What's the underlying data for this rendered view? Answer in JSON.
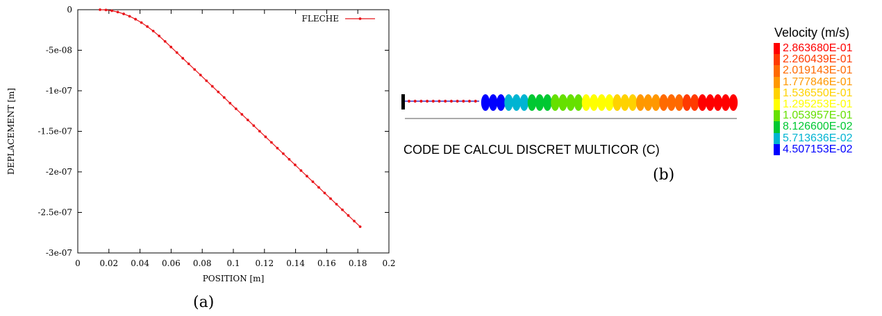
{
  "chart_data": [
    {
      "type": "line",
      "panel_label": "(a)",
      "xlabel": "POSITION [m]",
      "ylabel": "DEPLACEMENT [m]",
      "xlim": [
        0,
        0.2
      ],
      "ylim": [
        -3e-07,
        0
      ],
      "xticks": [
        "0",
        "0.02",
        "0.04",
        "0.06",
        "0.08",
        "0.1",
        "0.12",
        "0.14",
        "0.16",
        "0.18",
        "0.2"
      ],
      "yticks": [
        "0",
        "-5e-08",
        "-1e-07",
        "-1.5e-07",
        "-2e-07",
        "-2.5e-07",
        "-3e-07"
      ],
      "grid": false,
      "legend_position": "top-right",
      "series_color": "#e8151b",
      "series": [
        {
          "name": "FLECHE",
          "x": [
            0.0143,
            0.0181,
            0.0219,
            0.0257,
            0.0295,
            0.0333,
            0.0371,
            0.0409,
            0.0447,
            0.0485,
            0.0523,
            0.0561,
            0.0599,
            0.0637,
            0.0675,
            0.0713,
            0.0751,
            0.0789,
            0.0827,
            0.0865,
            0.0903,
            0.0941,
            0.0979,
            0.1017,
            0.1055,
            0.1093,
            0.1131,
            0.1169,
            0.1207,
            0.1245,
            0.1283,
            0.1321,
            0.1359,
            0.1397,
            0.1435,
            0.1473,
            0.1511,
            0.1549,
            0.1587,
            0.1625,
            0.1663,
            0.1701,
            0.1739,
            0.1777,
            0.1815
          ],
          "y": [
            0,
            -3.3e-10,
            -1.3e-09,
            -2.9e-09,
            -5.2e-09,
            -8.1e-09,
            -1.17e-08,
            -1.59e-08,
            -2.08e-08,
            -2.63e-08,
            -3.24e-08,
            -3.91e-08,
            -4.6e-08,
            -5.29e-08,
            -5.99e-08,
            -6.68e-08,
            -7.37e-08,
            -8.06e-08,
            -8.76e-08,
            -9.45e-08,
            -1.014e-07,
            -1.083e-07,
            -1.153e-07,
            -1.222e-07,
            -1.291e-07,
            -1.36e-07,
            -1.43e-07,
            -1.499e-07,
            -1.568e-07,
            -1.637e-07,
            -1.707e-07,
            -1.776e-07,
            -1.845e-07,
            -1.914e-07,
            -1.984e-07,
            -2.053e-07,
            -2.122e-07,
            -2.191e-07,
            -2.261e-07,
            -2.33e-07,
            -2.399e-07,
            -2.468e-07,
            -2.538e-07,
            -2.607e-07,
            -2.676e-07
          ]
        }
      ]
    }
  ],
  "simulation": {
    "panel_label": "(b)",
    "code_text": "CODE DE CALCUL DISCRET MULTICOR (C)",
    "legend_title": "Velocity (m/s)",
    "legend_entries": [
      {
        "label": "2.863680E-01",
        "color": "#ff0000"
      },
      {
        "label": "2.260439E-01",
        "color": "#ff3a00"
      },
      {
        "label": "2.019143E-01",
        "color": "#ff6a00"
      },
      {
        "label": "1.777846E-01",
        "color": "#ff9800"
      },
      {
        "label": "1.536550E-01",
        "color": "#ffd200"
      },
      {
        "label": "1.295253E-01",
        "color": "#ffff00"
      },
      {
        "label": "1.053957E-01",
        "color": "#66e000"
      },
      {
        "label": "8.126600E-02",
        "color": "#00c832"
      },
      {
        "label": "5.713636E-02",
        "color": "#00b4d2"
      },
      {
        "label": "4.507153E-02",
        "color": "#0000ff"
      }
    ],
    "chain_colors": [
      "#0000ff",
      "#0000ff",
      "#0000ff",
      "#00b4d2",
      "#00b4d2",
      "#00b4d2",
      "#00c832",
      "#00c832",
      "#00c832",
      "#66e000",
      "#66e000",
      "#66e000",
      "#66e000",
      "#ffff00",
      "#ffff00",
      "#ffff00",
      "#ffff00",
      "#ffd200",
      "#ffd200",
      "#ffd200",
      "#ff9800",
      "#ff9800",
      "#ff9800",
      "#ff6a00",
      "#ff6a00",
      "#ff6a00",
      "#ff3a00",
      "#ff3a00",
      "#ff0000",
      "#ff0000",
      "#ff0000",
      "#ff0000",
      "#ff0000"
    ]
  }
}
